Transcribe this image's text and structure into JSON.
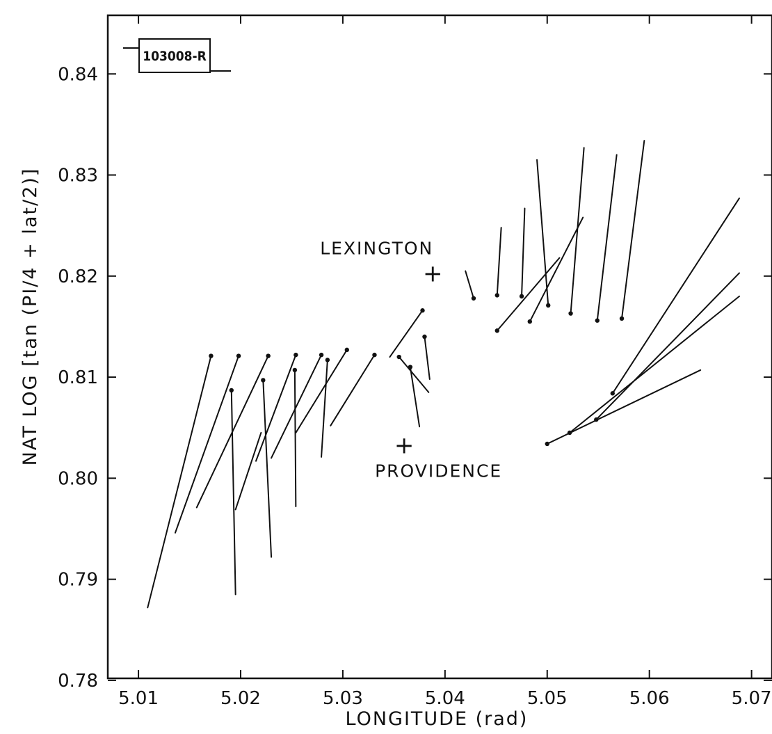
{
  "chart_data": {
    "type": "line",
    "figure_id": "103008-R",
    "xlabel": "LONGITUDE (rad)",
    "ylabel": "NAT LOG [tan (PI/4 + lat/2)]",
    "xlim": [
      5.007,
      5.072
    ],
    "ylim": [
      0.7802,
      0.8458
    ],
    "x_ticks": [
      5.01,
      5.02,
      5.03,
      5.04,
      5.05,
      5.06,
      5.07
    ],
    "y_ticks": [
      0.78,
      0.79,
      0.8,
      0.81,
      0.82,
      0.83,
      0.84
    ],
    "x_tick_labels": [
      "5.01",
      "5.02",
      "5.03",
      "5.04",
      "5.05",
      "5.06",
      "5.07"
    ],
    "y_tick_labels": [
      "0.78",
      "0.79",
      "0.80",
      "0.81",
      "0.82",
      "0.83",
      "0.84"
    ],
    "grid": false,
    "annotations": [
      {
        "text": "LEXINGTON",
        "marker_x": 5.0388,
        "marker_y": 0.8203
      },
      {
        "text": "PROVIDENCE",
        "marker_x": 5.036,
        "marker_y": 0.8033
      }
    ],
    "segments": [
      {
        "x": [
          5.0171,
          5.0109
        ],
        "y": [
          0.8121,
          0.7872
        ],
        "dot": true
      },
      {
        "x": [
          5.0198,
          5.0136
        ],
        "y": [
          0.8121,
          0.7946
        ],
        "dot": true
      },
      {
        "x": [
          5.0227,
          5.0157
        ],
        "y": [
          0.8121,
          0.7971
        ],
        "dot": true
      },
      {
        "x": [
          5.0254,
          5.0215
        ],
        "y": [
          0.8122,
          0.8017
        ],
        "dot": true
      },
      {
        "x": [
          5.0279,
          5.023
        ],
        "y": [
          0.8122,
          0.802
        ],
        "dot": true
      },
      {
        "x": [
          5.0304,
          5.0254
        ],
        "y": [
          0.8127,
          0.8045
        ],
        "dot": true
      },
      {
        "x": [
          5.0331,
          5.0288
        ],
        "y": [
          0.8122,
          0.8052
        ],
        "dot": true
      },
      {
        "x": [
          5.0191,
          5.0195
        ],
        "y": [
          0.8087,
          0.7885
        ],
        "dot": true
      },
      {
        "x": [
          5.0195,
          5.022
        ],
        "y": [
          0.7969,
          0.8045
        ],
        "dot": false
      },
      {
        "x": [
          5.0222,
          5.023
        ],
        "y": [
          0.8097,
          0.7922
        ],
        "dot": true
      },
      {
        "x": [
          5.0253,
          5.0254
        ],
        "y": [
          0.8107,
          0.7972
        ],
        "dot": true
      },
      {
        "x": [
          5.0285,
          5.0279
        ],
        "y": [
          0.8117,
          0.8021
        ],
        "dot": true
      },
      {
        "x": [
          5.0378,
          5.0346
        ],
        "y": [
          0.8166,
          0.812
        ],
        "dot": true
      },
      {
        "x": [
          5.0355,
          5.0384
        ],
        "y": [
          0.812,
          0.8085
        ],
        "dot": true
      },
      {
        "x": [
          5.0366,
          5.0375
        ],
        "y": [
          0.811,
          0.8051
        ],
        "dot": true
      },
      {
        "x": [
          5.038,
          5.0385
        ],
        "y": [
          0.814,
          0.8098
        ],
        "dot": true
      },
      {
        "x": [
          5.0428,
          5.042
        ],
        "y": [
          0.8178,
          0.8205
        ],
        "dot": true
      },
      {
        "x": [
          5.0451,
          5.0455
        ],
        "y": [
          0.8181,
          0.8248
        ],
        "dot": true
      },
      {
        "x": [
          5.0475,
          5.0478
        ],
        "y": [
          0.818,
          0.8267
        ],
        "dot": true
      },
      {
        "x": [
          5.0501,
          5.049
        ],
        "y": [
          0.8171,
          0.8315
        ],
        "dot": true
      },
      {
        "x": [
          5.0451,
          5.0512
        ],
        "y": [
          0.8146,
          0.8218
        ],
        "dot": true
      },
      {
        "x": [
          5.0483,
          5.0535
        ],
        "y": [
          0.8155,
          0.8258
        ],
        "dot": true
      },
      {
        "x": [
          5.0523,
          5.0536
        ],
        "y": [
          0.8163,
          0.8327
        ],
        "dot": true
      },
      {
        "x": [
          5.0549,
          5.0568
        ],
        "y": [
          0.8156,
          0.832
        ],
        "dot": true
      },
      {
        "x": [
          5.0573,
          5.0595
        ],
        "y": [
          0.8158,
          0.8334
        ],
        "dot": true
      },
      {
        "x": [
          5.05,
          5.065
        ],
        "y": [
          0.8034,
          0.8107
        ],
        "dot": true
      },
      {
        "x": [
          5.0522,
          5.0688
        ],
        "y": [
          0.8045,
          0.818
        ],
        "dot": true
      },
      {
        "x": [
          5.0548,
          5.0688
        ],
        "y": [
          0.8058,
          0.8203
        ],
        "dot": true
      },
      {
        "x": [
          5.0564,
          5.0688
        ],
        "y": [
          0.8084,
          0.8277
        ],
        "dot": true
      }
    ]
  }
}
